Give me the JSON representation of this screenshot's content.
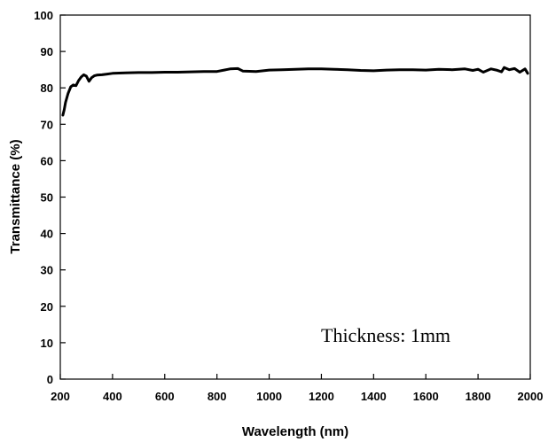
{
  "chart_data": {
    "type": "line",
    "title": "",
    "xlabel": "Wavelength (nm)",
    "ylabel": "Transmittance (%)",
    "xlim": [
      200,
      2000
    ],
    "ylim": [
      0,
      100
    ],
    "x_ticks": [
      200,
      400,
      600,
      800,
      1000,
      1200,
      1400,
      1600,
      1800,
      2000
    ],
    "y_ticks": [
      0,
      10,
      20,
      30,
      40,
      50,
      60,
      70,
      80,
      90,
      100
    ],
    "grid": false,
    "legend": "none",
    "annotation": "Thickness: 1mm",
    "series": [
      {
        "color": "#000000",
        "x": [
          210,
          215,
          220,
          230,
          240,
          250,
          260,
          270,
          280,
          290,
          300,
          310,
          320,
          330,
          340,
          360,
          380,
          400,
          450,
          500,
          550,
          600,
          650,
          700,
          750,
          800,
          850,
          880,
          900,
          950,
          1000,
          1050,
          1100,
          1150,
          1200,
          1250,
          1300,
          1350,
          1400,
          1450,
          1500,
          1550,
          1600,
          1650,
          1700,
          1750,
          1780,
          1800,
          1820,
          1850,
          1870,
          1890,
          1900,
          1920,
          1940,
          1960,
          1980,
          1990
        ],
        "y": [
          72.5,
          74,
          76,
          78.5,
          80.3,
          80.8,
          80.6,
          82,
          83,
          83.6,
          83.2,
          81.8,
          82.8,
          83.3,
          83.5,
          83.6,
          83.8,
          84.0,
          84.1,
          84.2,
          84.2,
          84.3,
          84.3,
          84.4,
          84.5,
          84.5,
          85.2,
          85.3,
          84.6,
          84.5,
          84.9,
          85.0,
          85.1,
          85.2,
          85.2,
          85.1,
          85.0,
          84.8,
          84.7,
          84.9,
          85.0,
          85.0,
          84.9,
          85.1,
          85.0,
          85.2,
          84.8,
          85.1,
          84.3,
          85.2,
          84.9,
          84.4,
          85.6,
          85.0,
          85.3,
          84.3,
          85.2,
          84.0
        ]
      }
    ]
  }
}
